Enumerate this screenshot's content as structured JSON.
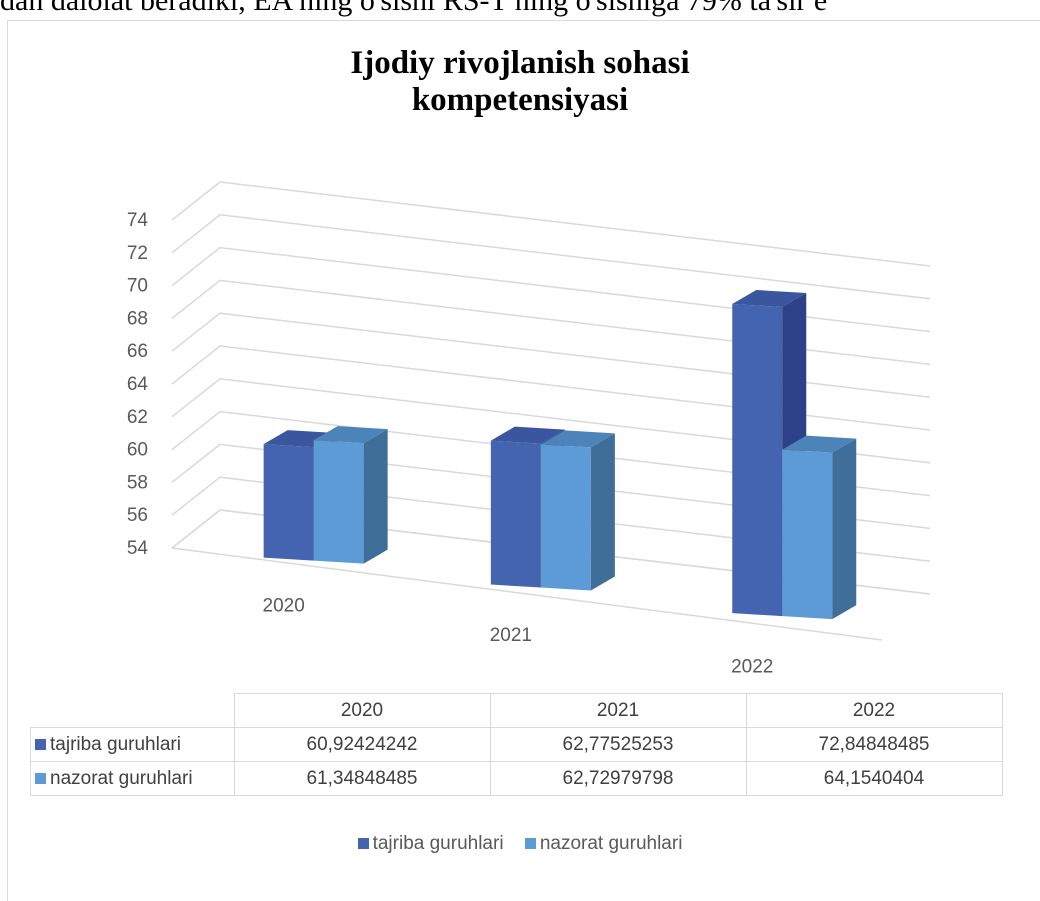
{
  "page": {
    "top_text": "dan dalolat beradiki, EA ning o'sishi RS-T ning o'sishiga 79% ta'sir e"
  },
  "chart_data": {
    "type": "bar",
    "title": "Ijodiy rivojlanish sohasi kompetensiyasi",
    "title_lines": [
      "Ijodiy rivojlanish sohasi",
      "kompetensiyasi"
    ],
    "categories": [
      "2020",
      "2021",
      "2022"
    ],
    "series": [
      {
        "name": "tajriba guruhlari",
        "values": [
          60.92424242,
          62.77525253,
          72.84848485
        ],
        "labels": [
          "60,92424242",
          "62,77525253",
          "72,84848485"
        ]
      },
      {
        "name": "nazorat guruhlari",
        "values": [
          61.34848485,
          62.72979798,
          64.1540404
        ],
        "labels": [
          "61,34848485",
          "62,72979798",
          "64,1540404"
        ]
      }
    ],
    "yticks": [
      "54",
      "56",
      "58",
      "60",
      "62",
      "64",
      "66",
      "68",
      "70",
      "72",
      "74"
    ],
    "ylim": [
      54,
      74
    ],
    "grid": true,
    "legend_position": "bottom",
    "data_table": true,
    "colors": {
      "tajriba": {
        "front": "#4564b0",
        "side": "#2c4187",
        "top": "#3a569f"
      },
      "nazorat": {
        "front": "#5d9bd6",
        "side": "#3f6e99",
        "top": "#4c83b9"
      },
      "grid": "#d9d9d9",
      "text": "#595959"
    }
  }
}
